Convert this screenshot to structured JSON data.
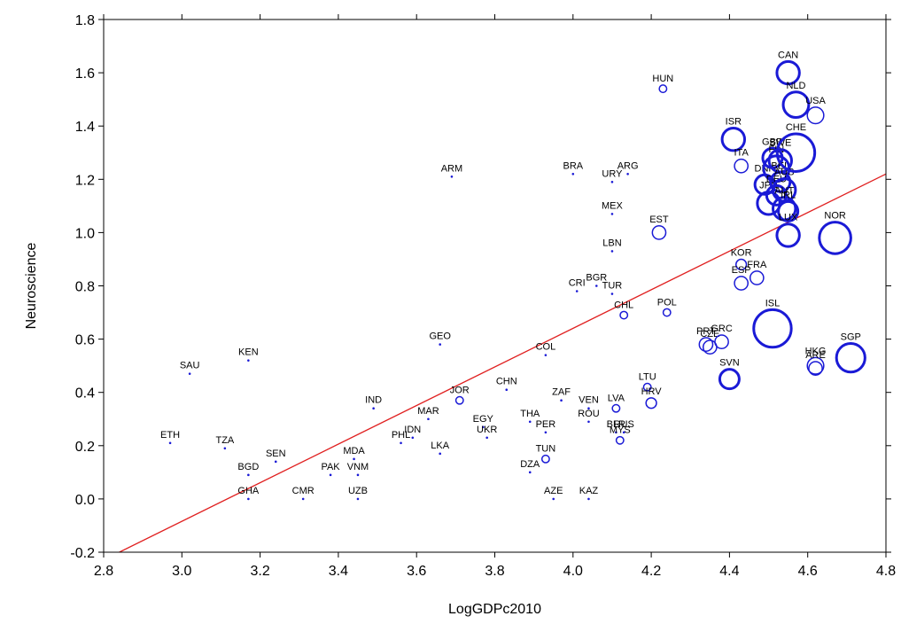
{
  "chart_data": {
    "type": "scatter",
    "title": "",
    "xlabel": "LogGDPc2010",
    "ylabel": "Neuroscience",
    "xlim": [
      2.8,
      4.8
    ],
    "ylim": [
      -0.2,
      1.8
    ],
    "x_ticks": [
      "2.8",
      "3.0",
      "3.2",
      "3.4",
      "3.6",
      "3.8",
      "4.0",
      "4.2",
      "4.4",
      "4.6",
      "4.8"
    ],
    "y_ticks": [
      "-0.2",
      "0.0",
      "0.2",
      "0.4",
      "0.6",
      "0.8",
      "1.0",
      "1.2",
      "1.4",
      "1.6",
      "1.8"
    ],
    "grid": false,
    "marker": "circle (bubble size varies)",
    "colors": {
      "points": "#1a1ad6",
      "trendline": "#e02020",
      "axis": "#000000"
    },
    "trendline": {
      "type": "linear",
      "x": [
        2.84,
        4.8
      ],
      "y": [
        -0.2,
        1.22
      ]
    },
    "points": [
      {
        "label": "SAU",
        "x": 3.02,
        "y": 0.47,
        "size": 0
      },
      {
        "label": "ETH",
        "x": 2.97,
        "y": 0.21,
        "size": 0
      },
      {
        "label": "KEN",
        "x": 3.17,
        "y": 0.52,
        "size": 0
      },
      {
        "label": "TZA",
        "x": 3.11,
        "y": 0.19,
        "size": 0
      },
      {
        "label": "BGD",
        "x": 3.17,
        "y": 0.09,
        "size": 0
      },
      {
        "label": "GHA",
        "x": 3.17,
        "y": 0.0,
        "size": 0
      },
      {
        "label": "SEN",
        "x": 3.24,
        "y": 0.14,
        "size": 0
      },
      {
        "label": "CMR",
        "x": 3.31,
        "y": 0.0,
        "size": 0
      },
      {
        "label": "PAK",
        "x": 3.38,
        "y": 0.09,
        "size": 0
      },
      {
        "label": "MDA",
        "x": 3.44,
        "y": 0.15,
        "size": 0
      },
      {
        "label": "VNM",
        "x": 3.45,
        "y": 0.09,
        "size": 0
      },
      {
        "label": "UZB",
        "x": 3.45,
        "y": 0.0,
        "size": 0
      },
      {
        "label": "IND",
        "x": 3.49,
        "y": 0.34,
        "size": 0
      },
      {
        "label": "PHL",
        "x": 3.56,
        "y": 0.21,
        "size": 0
      },
      {
        "label": "IDN",
        "x": 3.59,
        "y": 0.23,
        "size": 0
      },
      {
        "label": "MAR",
        "x": 3.63,
        "y": 0.3,
        "size": 0
      },
      {
        "label": "GEO",
        "x": 3.66,
        "y": 0.58,
        "size": 0
      },
      {
        "label": "LKA",
        "x": 3.66,
        "y": 0.17,
        "size": 0
      },
      {
        "label": "ARM",
        "x": 3.69,
        "y": 1.21,
        "size": 0
      },
      {
        "label": "JOR",
        "x": 3.71,
        "y": 0.37,
        "size": 1
      },
      {
        "label": "EGY",
        "x": 3.77,
        "y": 0.27,
        "size": 0
      },
      {
        "label": "UKR",
        "x": 3.78,
        "y": 0.23,
        "size": 0
      },
      {
        "label": "CHN",
        "x": 3.83,
        "y": 0.41,
        "size": 0
      },
      {
        "label": "THA",
        "x": 3.89,
        "y": 0.29,
        "size": 0
      },
      {
        "label": "DZA",
        "x": 3.89,
        "y": 0.1,
        "size": 0
      },
      {
        "label": "COL",
        "x": 3.93,
        "y": 0.54,
        "size": 0
      },
      {
        "label": "PER",
        "x": 3.93,
        "y": 0.25,
        "size": 0
      },
      {
        "label": "TUN",
        "x": 3.93,
        "y": 0.15,
        "size": 1
      },
      {
        "label": "AZE",
        "x": 3.95,
        "y": 0.0,
        "size": 0
      },
      {
        "label": "ZAF",
        "x": 3.97,
        "y": 0.37,
        "size": 0
      },
      {
        "label": "CRI",
        "x": 4.01,
        "y": 0.78,
        "size": 0
      },
      {
        "label": "BRA",
        "x": 4.0,
        "y": 1.22,
        "size": 0
      },
      {
        "label": "VEN",
        "x": 4.04,
        "y": 0.34,
        "size": 0
      },
      {
        "label": "ROU",
        "x": 4.04,
        "y": 0.29,
        "size": 0
      },
      {
        "label": "KAZ",
        "x": 4.04,
        "y": 0.0,
        "size": 0
      },
      {
        "label": "BGR",
        "x": 4.06,
        "y": 0.8,
        "size": 0
      },
      {
        "label": "TUR",
        "x": 4.1,
        "y": 0.77,
        "size": 0
      },
      {
        "label": "URY",
        "x": 4.1,
        "y": 1.19,
        "size": 0
      },
      {
        "label": "MEX",
        "x": 4.1,
        "y": 1.07,
        "size": 0
      },
      {
        "label": "LBN",
        "x": 4.1,
        "y": 0.93,
        "size": 0
      },
      {
        "label": "LVA",
        "x": 4.11,
        "y": 0.34,
        "size": 1
      },
      {
        "label": "BLR",
        "x": 4.11,
        "y": 0.25,
        "size": 0
      },
      {
        "label": "RUS",
        "x": 4.13,
        "y": 0.25,
        "size": 0
      },
      {
        "label": "MYS",
        "x": 4.12,
        "y": 0.22,
        "size": 1
      },
      {
        "label": "ARG",
        "x": 4.14,
        "y": 1.22,
        "size": 0
      },
      {
        "label": "CHL",
        "x": 4.13,
        "y": 0.69,
        "size": 1
      },
      {
        "label": "LTU",
        "x": 4.19,
        "y": 0.42,
        "size": 1
      },
      {
        "label": "HRV",
        "x": 4.2,
        "y": 0.36,
        "size": 2
      },
      {
        "label": "HUN",
        "x": 4.23,
        "y": 1.54,
        "size": 1
      },
      {
        "label": "EST",
        "x": 4.22,
        "y": 1.0,
        "size": 3
      },
      {
        "label": "POL",
        "x": 4.24,
        "y": 0.7,
        "size": 1
      },
      {
        "label": "PRT",
        "x": 4.34,
        "y": 0.58,
        "size": 3
      },
      {
        "label": "CZE",
        "x": 4.35,
        "y": 0.57,
        "size": 3
      },
      {
        "label": "GRC",
        "x": 4.38,
        "y": 0.59,
        "size": 3
      },
      {
        "label": "SVN",
        "x": 4.4,
        "y": 0.45,
        "size": 5
      },
      {
        "label": "ISR",
        "x": 4.41,
        "y": 1.35,
        "size": 6
      },
      {
        "label": "ITA",
        "x": 4.43,
        "y": 1.25,
        "size": 3
      },
      {
        "label": "KOR",
        "x": 4.43,
        "y": 0.88,
        "size": 2
      },
      {
        "label": "ESP",
        "x": 4.43,
        "y": 0.81,
        "size": 3
      },
      {
        "label": "FRA",
        "x": 4.47,
        "y": 0.83,
        "size": 3
      },
      {
        "label": "DNK",
        "x": 4.49,
        "y": 1.18,
        "size": 5
      },
      {
        "label": "JPN",
        "x": 4.5,
        "y": 1.11,
        "size": 6
      },
      {
        "label": "GBR",
        "x": 4.51,
        "y": 1.28,
        "size": 5
      },
      {
        "label": "FIN",
        "x": 4.52,
        "y": 1.24,
        "size": 7
      },
      {
        "label": "DEU",
        "x": 4.52,
        "y": 1.14,
        "size": 5
      },
      {
        "label": "BEL",
        "x": 4.53,
        "y": 1.19,
        "size": 5
      },
      {
        "label": "SWE",
        "x": 4.53,
        "y": 1.27,
        "size": 6
      },
      {
        "label": "AUS",
        "x": 4.54,
        "y": 1.16,
        "size": 6
      },
      {
        "label": "AUT",
        "x": 4.54,
        "y": 1.09,
        "size": 6
      },
      {
        "label": "IRL",
        "x": 4.55,
        "y": 1.08,
        "size": 5
      },
      {
        "label": "ISL",
        "x": 4.51,
        "y": 0.64,
        "size": 11
      },
      {
        "label": "LUX",
        "x": 4.55,
        "y": 0.99,
        "size": 6
      },
      {
        "label": "CAN",
        "x": 4.55,
        "y": 1.6,
        "size": 6
      },
      {
        "label": "NLD",
        "x": 4.57,
        "y": 1.48,
        "size": 7
      },
      {
        "label": "CHE",
        "x": 4.57,
        "y": 1.3,
        "size": 11
      },
      {
        "label": "USA",
        "x": 4.62,
        "y": 1.44,
        "size": 4
      },
      {
        "label": "HKG",
        "x": 4.62,
        "y": 0.5,
        "size": 4
      },
      {
        "label": "ARE",
        "x": 4.62,
        "y": 0.49,
        "size": 3
      },
      {
        "label": "NOR",
        "x": 4.67,
        "y": 0.98,
        "size": 9
      },
      {
        "label": "SGP",
        "x": 4.71,
        "y": 0.53,
        "size": 8
      }
    ]
  }
}
